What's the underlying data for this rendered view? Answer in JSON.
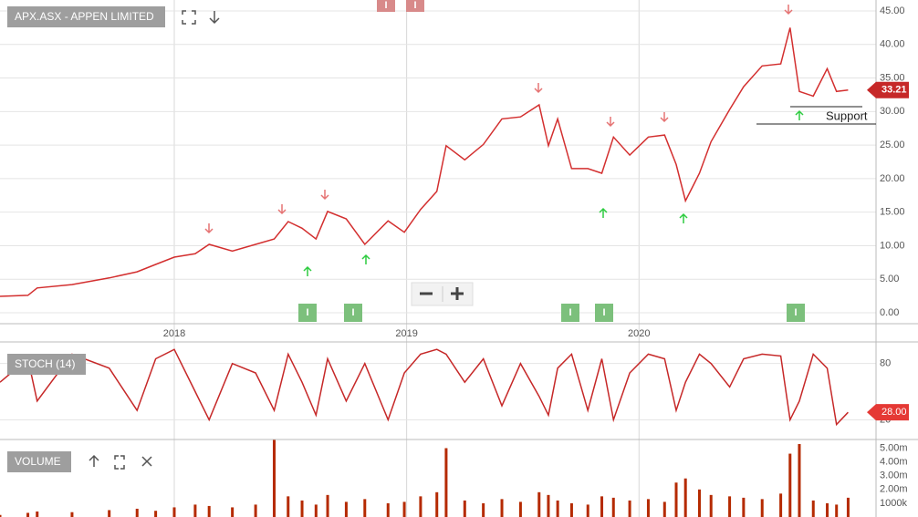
{
  "chart_data": [
    {
      "type": "line",
      "title": "APX.ASX - APPEN LIMITED",
      "x": [
        2017.25,
        2017.37,
        2017.41,
        2017.56,
        2017.72,
        2017.84,
        2017.92,
        2018.0,
        2018.09,
        2018.15,
        2018.25,
        2018.35,
        2018.43,
        2018.49,
        2018.55,
        2018.61,
        2018.66,
        2018.74,
        2018.82,
        2018.92,
        2018.99,
        2019.06,
        2019.13,
        2019.17,
        2019.25,
        2019.33,
        2019.41,
        2019.49,
        2019.57,
        2019.61,
        2019.65,
        2019.71,
        2019.78,
        2019.84,
        2019.89,
        2019.96,
        2020.04,
        2020.11,
        2020.16,
        2020.2,
        2020.26,
        2020.31,
        2020.39,
        2020.45,
        2020.53,
        2020.61,
        2020.65,
        2020.69,
        2020.75,
        2020.81,
        2020.85,
        2020.9
      ],
      "series": [
        {
          "color": "#d32f2f",
          "values": [
            2.45,
            2.6,
            3.7,
            4.2,
            5.2,
            6.1,
            7.2,
            8.3,
            8.8,
            10.2,
            9.2,
            10.2,
            11.0,
            13.6,
            12.6,
            11.0,
            15.1,
            14.0,
            10.2,
            13.7,
            12.0,
            15.4,
            18.1,
            24.9,
            22.8,
            25.1,
            28.9,
            29.2,
            31.0,
            24.9,
            28.9,
            21.5,
            21.5,
            20.8,
            26.2,
            23.5,
            26.2,
            26.5,
            22.1,
            16.7,
            20.8,
            25.5,
            30.3,
            33.7,
            36.8,
            37.1,
            42.5,
            33.0,
            32.3,
            36.4,
            33.0,
            33.21
          ]
        }
      ],
      "xlim": [
        2017.25,
        2021.02
      ],
      "xticks": [
        2018,
        2019,
        2020
      ],
      "ylim": [
        -1.63,
        46.63
      ],
      "yticks": [
        {
          "value": 0,
          "label": "0.00"
        },
        {
          "value": 5,
          "label": "5.00"
        },
        {
          "value": 10,
          "label": "10.00"
        },
        {
          "value": 15,
          "label": "15.00"
        },
        {
          "value": 20,
          "label": "20.00"
        },
        {
          "value": 25,
          "label": "25.00"
        },
        {
          "value": 30,
          "label": "30.00"
        },
        {
          "value": 35,
          "label": "35.00"
        },
        {
          "value": 40,
          "label": "40.00"
        },
        {
          "value": 45,
          "label": "45.00"
        }
      ],
      "grid": true,
      "annotation": "Support",
      "event_flags": [
        "I",
        "I",
        "I",
        "I",
        "I",
        "I",
        "I"
      ]
    },
    {
      "type": "line",
      "title": "STOCH (14)",
      "series": [
        {
          "color": "#c62828",
          "values": [
            60,
            85,
            40,
            90,
            75,
            30,
            85,
            95,
            50,
            20,
            80,
            70,
            30,
            90,
            60,
            25,
            85,
            40,
            80,
            20,
            70,
            90,
            95,
            90,
            60,
            85,
            35,
            80,
            45,
            25,
            75,
            90,
            30,
            85,
            20,
            70,
            90,
            85,
            30,
            60,
            90,
            80,
            55,
            85,
            90,
            88,
            20,
            40,
            90,
            75,
            15,
            28
          ]
        }
      ],
      "ylim": [
        -1,
        103
      ],
      "yticks": [
        20,
        80
      ],
      "grid": true,
      "last_value_label": "28.00"
    },
    {
      "type": "bar",
      "title": "VOLUME",
      "color": "#b52a00",
      "values": [
        150000,
        300000,
        400000,
        350000,
        500000,
        600000,
        450000,
        700000,
        900000,
        800000,
        700000,
        900000,
        5600000,
        1500000,
        1200000,
        900000,
        1600000,
        1100000,
        1300000,
        1000000,
        1100000,
        1500000,
        1800000,
        5000000,
        1200000,
        1000000,
        1300000,
        1100000,
        1800000,
        1600000,
        1200000,
        1000000,
        900000,
        1500000,
        1400000,
        1200000,
        1300000,
        1100000,
        2500000,
        2800000,
        2000000,
        1600000,
        1500000,
        1400000,
        1300000,
        1700000,
        4600000,
        5300000,
        1200000,
        1000000,
        900000,
        1400000
      ],
      "ylim": [
        0,
        5630000
      ],
      "yticks": [
        {
          "value": 1000000,
          "label": "1000k"
        },
        {
          "value": 2000000,
          "label": "2.00m"
        },
        {
          "value": 3000000,
          "label": "3.00m"
        },
        {
          "value": 4000000,
          "label": "4.00m"
        },
        {
          "value": 5000000,
          "label": "5.00m"
        }
      ]
    }
  ]
}
